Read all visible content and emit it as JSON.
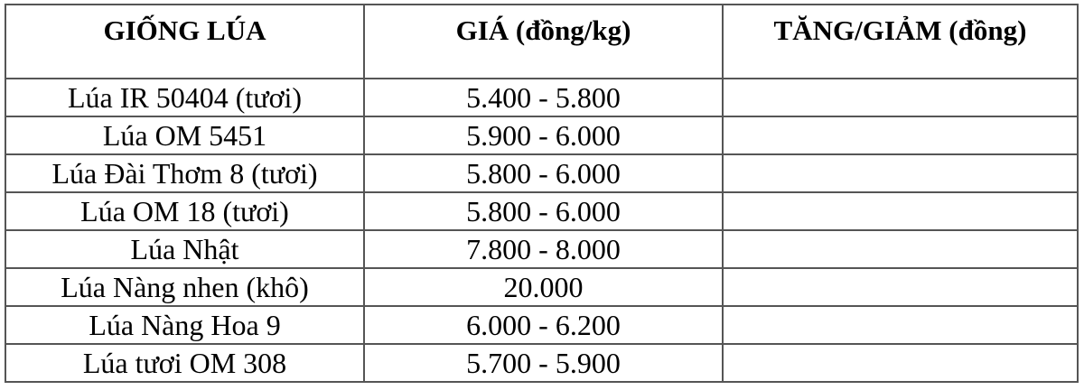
{
  "headers": [
    "GIỐNG LÚA",
    "GIÁ (đồng/kg)",
    "TĂNG/GIẢM (đồng)"
  ],
  "rows": [
    {
      "variety": "Lúa IR 50404 (tươi)",
      "price": "5.400 - 5.800",
      "change": ""
    },
    {
      "variety": "Lúa OM 5451",
      "price": "5.900 - 6.000",
      "change": ""
    },
    {
      "variety": "Lúa Đài Thơm 8 (tươi)",
      "price": "5.800 - 6.000",
      "change": ""
    },
    {
      "variety": "Lúa OM 18 (tươi)",
      "price": "5.800 - 6.000",
      "change": ""
    },
    {
      "variety": "Lúa Nhật",
      "price": "7.800 - 8.000",
      "change": ""
    },
    {
      "variety": "Lúa Nàng nhen (khô)",
      "price": "20.000",
      "change": ""
    },
    {
      "variety": "Lúa Nàng Hoa 9",
      "price": "6.000 - 6.200",
      "change": ""
    },
    {
      "variety": "Lúa tươi OM 308",
      "price": "5.700 - 5.900",
      "change": ""
    }
  ]
}
